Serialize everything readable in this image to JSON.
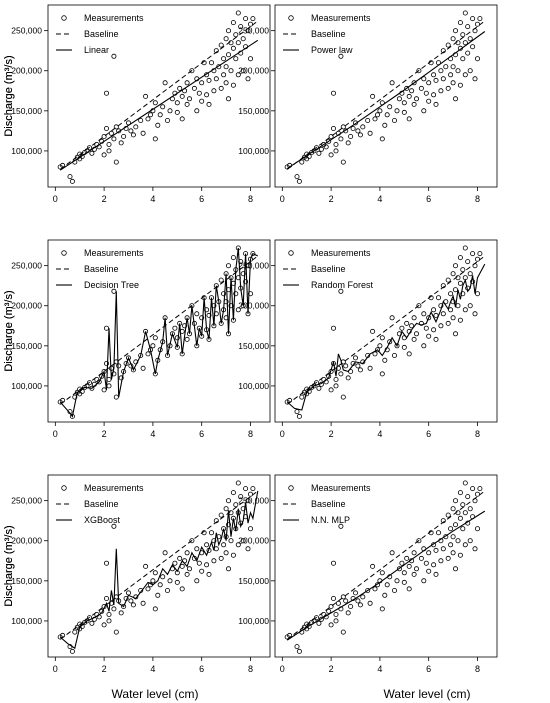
{
  "figure": {
    "xlabel": "Water level (cm)",
    "ylabel": "Discharge (m³/s)"
  },
  "chart_data": {
    "type": "scatter",
    "xlim": [
      -0.3,
      8.8
    ],
    "ylim": [
      55000,
      282000
    ],
    "xticks": [
      0,
      2,
      4,
      6,
      8
    ],
    "xtick_labels": [
      "0",
      "2",
      "4",
      "6",
      "8"
    ],
    "yticks": [
      100000,
      150000,
      200000,
      250000
    ],
    "ytick_labels": [
      "100,000",
      "150,000",
      "200,000",
      "250,000"
    ],
    "legend_position": "top-left",
    "legend_entries": [
      "Measurements",
      "Baseline"
    ],
    "baseline": {
      "name": "Baseline",
      "x": [
        0.2,
        8.3
      ],
      "y": [
        77000,
        262000
      ]
    },
    "measurements": {
      "name": "Measurements",
      "points": [
        [
          0.2,
          80000
        ],
        [
          0.3,
          82000
        ],
        [
          0.6,
          68000
        ],
        [
          0.7,
          62000
        ],
        [
          0.8,
          86000
        ],
        [
          0.9,
          92000
        ],
        [
          1.0,
          96000
        ],
        [
          1.0,
          90000
        ],
        [
          1.1,
          93000
        ],
        [
          1.2,
          98000
        ],
        [
          1.3,
          100000
        ],
        [
          1.4,
          104000
        ],
        [
          1.5,
          97000
        ],
        [
          1.6,
          102000
        ],
        [
          1.7,
          108000
        ],
        [
          1.8,
          105000
        ],
        [
          1.9,
          112000
        ],
        [
          2.0,
          118000
        ],
        [
          2.0,
          95000
        ],
        [
          2.1,
          128000
        ],
        [
          2.1,
          172000
        ],
        [
          2.2,
          108000
        ],
        [
          2.2,
          100000
        ],
        [
          2.3,
          122000
        ],
        [
          2.4,
          218000
        ],
        [
          2.4,
          115000
        ],
        [
          2.5,
          86000
        ],
        [
          2.5,
          130000
        ],
        [
          2.6,
          125000
        ],
        [
          2.7,
          110000
        ],
        [
          2.8,
          118000
        ],
        [
          2.9,
          128000
        ],
        [
          3.0,
          135000
        ],
        [
          3.1,
          125000
        ],
        [
          3.2,
          120000
        ],
        [
          3.3,
          130000
        ],
        [
          3.5,
          138000
        ],
        [
          3.6,
          122000
        ],
        [
          3.7,
          168000
        ],
        [
          3.8,
          140000
        ],
        [
          3.9,
          145000
        ],
        [
          4.0,
          150000
        ],
        [
          4.1,
          160000
        ],
        [
          4.1,
          115000
        ],
        [
          4.2,
          132000
        ],
        [
          4.3,
          145000
        ],
        [
          4.4,
          155000
        ],
        [
          4.5,
          185000
        ],
        [
          4.6,
          138000
        ],
        [
          4.7,
          150000
        ],
        [
          4.8,
          165000
        ],
        [
          4.9,
          172000
        ],
        [
          5.0,
          160000
        ],
        [
          5.0,
          148000
        ],
        [
          5.1,
          178000
        ],
        [
          5.2,
          168000
        ],
        [
          5.2,
          140000
        ],
        [
          5.3,
          175000
        ],
        [
          5.4,
          185000
        ],
        [
          5.4,
          158000
        ],
        [
          5.5,
          165000
        ],
        [
          5.6,
          200000
        ],
        [
          5.7,
          178000
        ],
        [
          5.8,
          150000
        ],
        [
          5.8,
          190000
        ],
        [
          5.9,
          172000
        ],
        [
          6.0,
          185000
        ],
        [
          6.0,
          162000
        ],
        [
          6.1,
          210000
        ],
        [
          6.2,
          195000
        ],
        [
          6.2,
          170000
        ],
        [
          6.3,
          188000
        ],
        [
          6.3,
          158000
        ],
        [
          6.4,
          210000
        ],
        [
          6.5,
          200000
        ],
        [
          6.5,
          175000
        ],
        [
          6.6,
          225000
        ],
        [
          6.6,
          190000
        ],
        [
          6.7,
          205000
        ],
        [
          6.8,
          232000
        ],
        [
          6.8,
          178000
        ],
        [
          6.9,
          215000
        ],
        [
          6.9,
          195000
        ],
        [
          7.0,
          240000
        ],
        [
          7.0,
          205000
        ],
        [
          7.0,
          185000
        ],
        [
          7.1,
          250000
        ],
        [
          7.1,
          220000
        ],
        [
          7.1,
          165000
        ],
        [
          7.2,
          235000
        ],
        [
          7.2,
          200000
        ],
        [
          7.3,
          260000
        ],
        [
          7.3,
          228000
        ],
        [
          7.3,
          182000
        ],
        [
          7.4,
          245000
        ],
        [
          7.4,
          215000
        ],
        [
          7.5,
          272000
        ],
        [
          7.5,
          235000
        ],
        [
          7.5,
          195000
        ],
        [
          7.6,
          255000
        ],
        [
          7.6,
          222000
        ],
        [
          7.7,
          240000
        ],
        [
          7.7,
          200000
        ],
        [
          7.8,
          265000
        ],
        [
          7.8,
          230000
        ],
        [
          7.9,
          250000
        ],
        [
          7.9,
          190000
        ],
        [
          8.0,
          258000
        ],
        [
          8.0,
          215000
        ],
        [
          8.1,
          265000
        ]
      ]
    },
    "panels": [
      {
        "model_name": "Linear",
        "type": "line",
        "x": [
          0.2,
          8.3
        ],
        "y": [
          76000,
          238000
        ]
      },
      {
        "model_name": "Power law",
        "type": "line",
        "x": [
          0.2,
          1,
          2,
          3,
          4,
          5,
          6,
          7,
          8.3
        ],
        "y": [
          78000,
          94000,
          114000,
          134000,
          155000,
          176000,
          198000,
          220000,
          249000
        ]
      },
      {
        "model_name": "Decision Tree",
        "type": "line",
        "x": [
          0.2,
          0.6,
          0.7,
          0.9,
          1.2,
          1.5,
          1.8,
          2.0,
          2.1,
          2.2,
          2.3,
          2.4,
          2.5,
          2.6,
          2.8,
          3.0,
          3.2,
          3.5,
          3.7,
          3.9,
          4.1,
          4.2,
          4.4,
          4.5,
          4.6,
          4.8,
          5.0,
          5.1,
          5.2,
          5.4,
          5.5,
          5.6,
          5.8,
          5.9,
          6.0,
          6.1,
          6.2,
          6.3,
          6.4,
          6.5,
          6.6,
          6.7,
          6.8,
          6.9,
          7.0,
          7.1,
          7.2,
          7.3,
          7.4,
          7.5,
          7.6,
          7.7,
          7.8,
          7.9,
          8.0,
          8.1,
          8.3
        ],
        "y": [
          80000,
          66000,
          62000,
          92000,
          98000,
          97000,
          105000,
          118000,
          95000,
          172000,
          108000,
          122000,
          218000,
          86000,
          118000,
          135000,
          120000,
          138000,
          168000,
          145000,
          115000,
          132000,
          155000,
          185000,
          138000,
          165000,
          148000,
          178000,
          140000,
          185000,
          165000,
          200000,
          150000,
          172000,
          162000,
          210000,
          170000,
          158000,
          210000,
          175000,
          225000,
          205000,
          178000,
          195000,
          240000,
          165000,
          235000,
          182000,
          245000,
          272000,
          222000,
          200000,
          265000,
          190000,
          258000,
          265000,
          262000
        ]
      },
      {
        "model_name": "Random Forest",
        "type": "line",
        "x": [
          0.2,
          0.5,
          0.8,
          1.0,
          1.3,
          1.6,
          1.9,
          2.1,
          2.2,
          2.3,
          2.4,
          2.5,
          2.7,
          3.0,
          3.3,
          3.6,
          3.9,
          4.1,
          4.3,
          4.5,
          4.7,
          4.9,
          5.1,
          5.3,
          5.5,
          5.7,
          5.9,
          6.1,
          6.3,
          6.5,
          6.6,
          6.8,
          6.9,
          7.0,
          7.1,
          7.2,
          7.3,
          7.4,
          7.5,
          7.6,
          7.7,
          7.8,
          7.9,
          8.0,
          8.3
        ],
        "y": [
          80000,
          72000,
          70000,
          92000,
          100000,
          103000,
          110000,
          130000,
          112000,
          140000,
          132000,
          120000,
          118000,
          130000,
          128000,
          140000,
          145000,
          138000,
          148000,
          160000,
          150000,
          168000,
          160000,
          170000,
          178000,
          176000,
          178000,
          192000,
          180000,
          195000,
          205000,
          196000,
          205000,
          212000,
          198000,
          220000,
          208000,
          225000,
          232000,
          218000,
          222000,
          238000,
          215000,
          235000,
          252000
        ]
      },
      {
        "model_name": "XGBoost",
        "type": "line",
        "x": [
          0.2,
          0.5,
          0.8,
          1.0,
          1.3,
          1.6,
          1.9,
          2.1,
          2.2,
          2.3,
          2.4,
          2.5,
          2.6,
          2.8,
          3.0,
          3.3,
          3.6,
          3.8,
          4.0,
          4.2,
          4.4,
          4.6,
          4.8,
          5.0,
          5.2,
          5.4,
          5.6,
          5.8,
          6.0,
          6.2,
          6.4,
          6.5,
          6.6,
          6.7,
          6.8,
          6.9,
          7.0,
          7.1,
          7.2,
          7.3,
          7.4,
          7.5,
          7.6,
          7.7,
          7.8,
          7.9,
          8.0,
          8.1,
          8.3
        ],
        "y": [
          80000,
          72000,
          66000,
          92000,
          100000,
          104000,
          110000,
          122000,
          112000,
          138000,
          120000,
          190000,
          122000,
          118000,
          132000,
          128000,
          140000,
          148000,
          145000,
          150000,
          165000,
          158000,
          170000,
          162000,
          175000,
          168000,
          185000,
          175000,
          192000,
          182000,
          198000,
          188000,
          210000,
          195000,
          202000,
          215000,
          200000,
          238000,
          205000,
          228000,
          212000,
          240000,
          218000,
          225000,
          248000,
          222000,
          235000,
          228000,
          262000
        ]
      },
      {
        "model_name": "N.N. MLP",
        "type": "line",
        "x": [
          0.2,
          1,
          2,
          3,
          4,
          5,
          6,
          7,
          8.3
        ],
        "y": [
          76000,
          92000,
          110000,
          128000,
          148000,
          170000,
          192000,
          212000,
          237000
        ]
      }
    ]
  }
}
